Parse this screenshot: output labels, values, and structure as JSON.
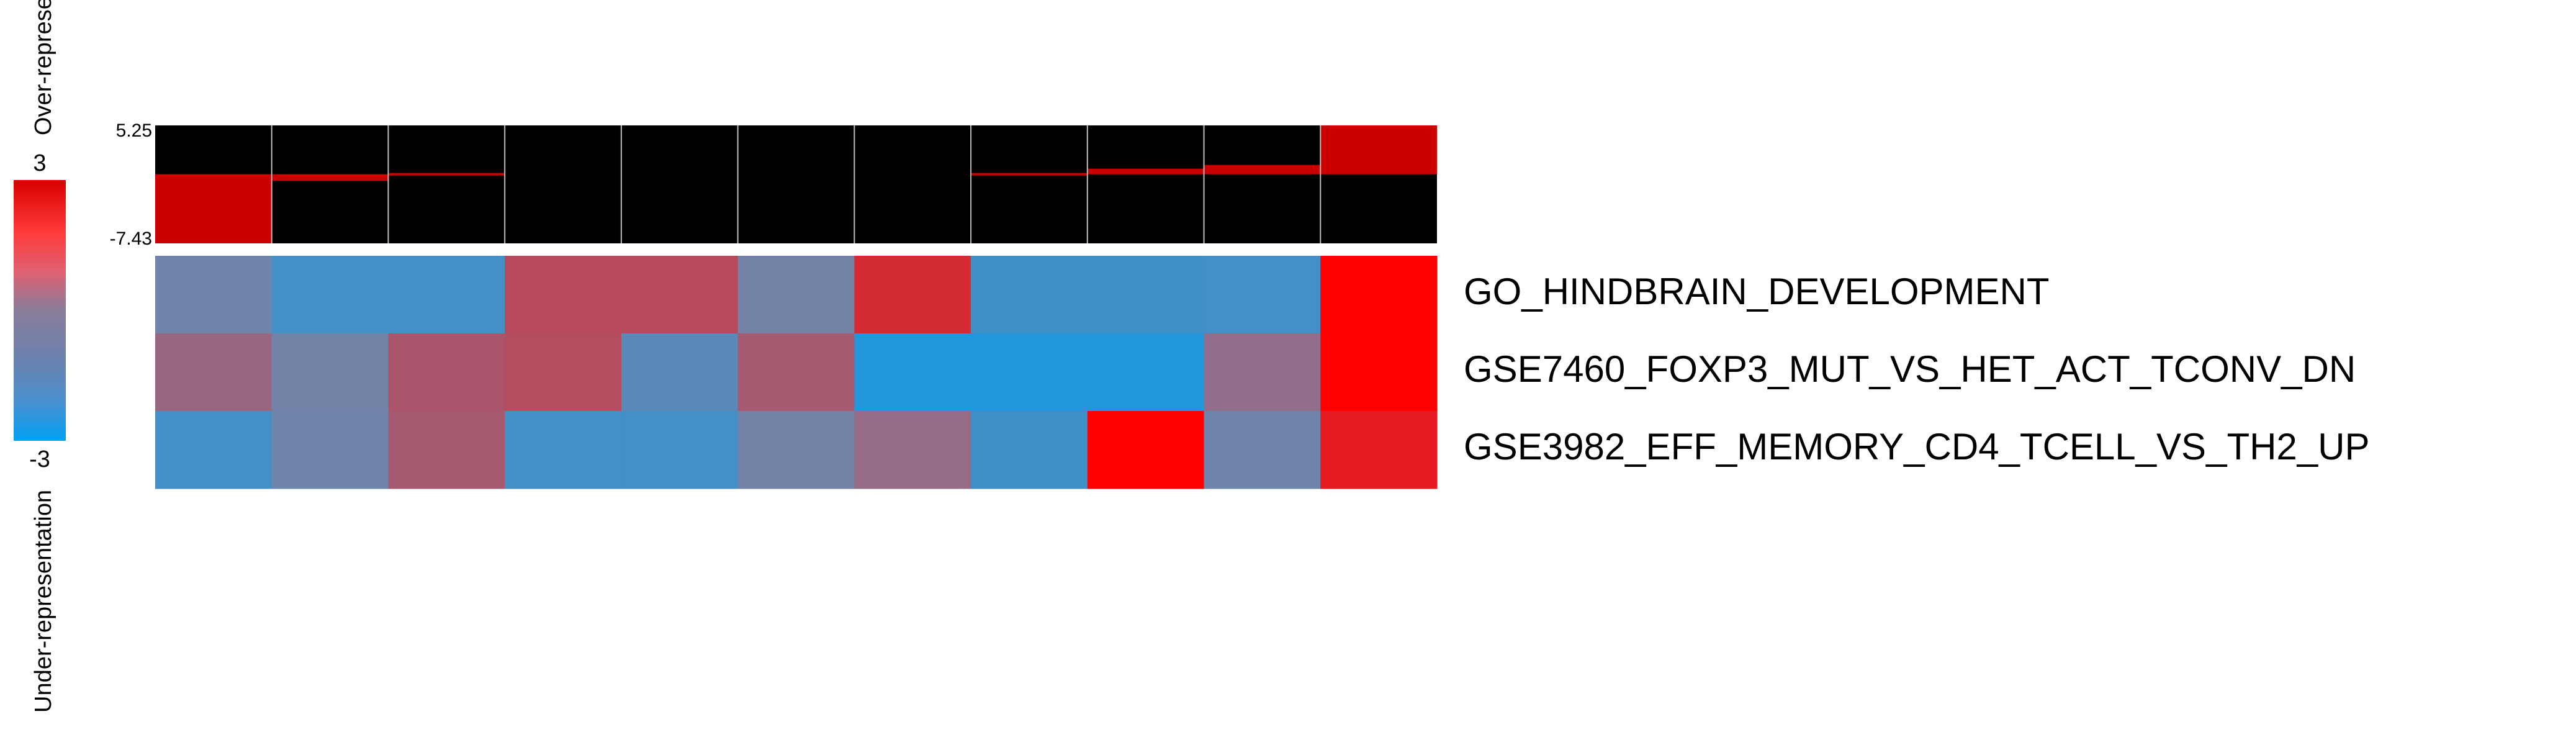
{
  "chart_data": {
    "type": "heatmap",
    "rows": [
      "GO_HINDBRAIN_DEVELOPMENT",
      "GSE7460_FOXP3_MUT_VS_HET_ACT_TCONV_DN",
      "GSE3982_EFF_MEMORY_CD4_TCELL_VS_TH2_UP"
    ],
    "columns": 11,
    "values": [
      [
        -0.4,
        -1.4,
        -1.4,
        1.3,
        1.3,
        -0.3,
        2.0,
        -1.5,
        -1.5,
        -1.4,
        3.0
      ],
      [
        0.6,
        -0.3,
        1.0,
        1.2,
        -0.9,
        0.9,
        -2.2,
        -2.2,
        -2.2,
        0.4,
        3.0
      ],
      [
        -1.4,
        -0.4,
        0.9,
        -1.4,
        -1.4,
        -0.3,
        0.5,
        -1.5,
        3.0,
        -0.4,
        2.4
      ]
    ],
    "color_scale": {
      "min": -3,
      "max": 3,
      "low_color": "#00a0f0",
      "mid_color": "#8080a0",
      "high_color": "#ff0000"
    },
    "top_bars": {
      "ymin": -7.43,
      "ymax": 5.25,
      "values": [
        -7.43,
        -0.7,
        -0.2,
        0.0,
        0.0,
        0.0,
        0.0,
        0.1,
        0.6,
        1.0,
        5.25
      ]
    },
    "legend": {
      "max_label": "3",
      "min_label": "-3",
      "over_label": "Over-represe",
      "under_label": "Under-representation"
    },
    "top_ticks": {
      "max_label": "5.25",
      "min_label": "-7.43"
    }
  }
}
